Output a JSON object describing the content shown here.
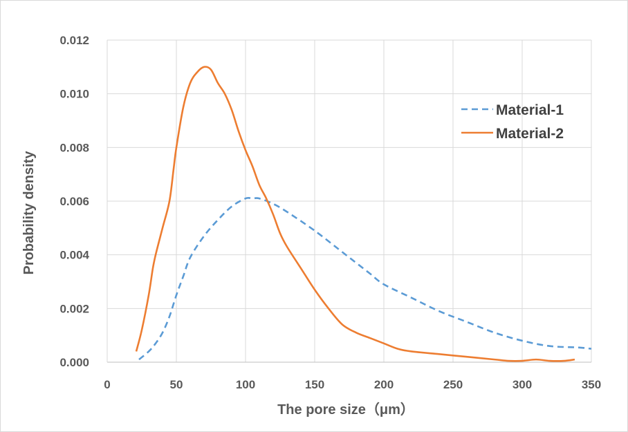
{
  "chart_data": {
    "type": "line",
    "title": "",
    "xlabel": "The pore size（μm）",
    "ylabel": "Probability density",
    "xlim": [
      0,
      350
    ],
    "ylim": [
      0,
      0.012
    ],
    "x_ticks": [
      "0",
      "50",
      "100",
      "150",
      "200",
      "250",
      "300",
      "350"
    ],
    "y_ticks": [
      "0.000",
      "0.002",
      "0.004",
      "0.006",
      "0.008",
      "0.010",
      "0.012"
    ],
    "grid": true,
    "legend_position": "top-right",
    "series": [
      {
        "name": "Material-1",
        "color": "#5b9bd5",
        "dash": "dashed",
        "x": [
          23,
          30,
          35,
          40,
          45,
          50,
          55,
          60,
          70,
          80,
          90,
          100,
          105,
          110,
          120,
          130,
          150,
          170,
          180,
          190,
          200,
          220,
          240,
          260,
          280,
          300,
          320,
          340,
          350
        ],
        "y": [
          0.0001,
          0.0004,
          0.0007,
          0.0011,
          0.0017,
          0.0025,
          0.0032,
          0.0039,
          0.0047,
          0.0053,
          0.0058,
          0.0061,
          0.0061,
          0.0061,
          0.0059,
          0.0056,
          0.0049,
          0.0041,
          0.0037,
          0.0033,
          0.0029,
          0.0024,
          0.0019,
          0.0015,
          0.0011,
          0.0008,
          0.0006,
          0.00055,
          0.0005
        ]
      },
      {
        "name": "Material-2",
        "color": "#ed7d31",
        "dash": "solid",
        "x": [
          21,
          25,
          30,
          33,
          35,
          40,
          45,
          48,
          50,
          55,
          60,
          65,
          70,
          75,
          80,
          85,
          90,
          95,
          100,
          105,
          110,
          115,
          120,
          125,
          130,
          140,
          150,
          160,
          170,
          180,
          190,
          200,
          210,
          220,
          240,
          260,
          280,
          290,
          300,
          310,
          320,
          330,
          338
        ],
        "y": [
          0.0004,
          0.0012,
          0.0025,
          0.0035,
          0.004,
          0.005,
          0.006,
          0.0072,
          0.008,
          0.0095,
          0.0104,
          0.0108,
          0.011,
          0.0109,
          0.0104,
          0.01,
          0.0094,
          0.0086,
          0.0079,
          0.0073,
          0.0066,
          0.0061,
          0.0055,
          0.0048,
          0.0043,
          0.0035,
          0.0027,
          0.002,
          0.0014,
          0.0011,
          0.0009,
          0.0007,
          0.0005,
          0.0004,
          0.0003,
          0.0002,
          0.0001,
          5e-05,
          5e-05,
          0.0001,
          5e-05,
          5e-05,
          0.0001
        ]
      }
    ]
  }
}
